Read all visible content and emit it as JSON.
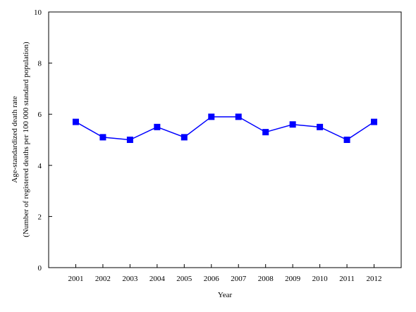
{
  "chart_data": {
    "type": "line",
    "title": "",
    "xlabel": "Year",
    "ylabel_line1": "Age-standardized death rate",
    "ylabel_line2": "(Number of registered deaths per 100 000 standard population)",
    "categories": [
      "2001",
      "2002",
      "2003",
      "2004",
      "2005",
      "2006",
      "2007",
      "2008",
      "2009",
      "2010",
      "2011",
      "2012"
    ],
    "values": [
      5.7,
      5.1,
      5.0,
      5.5,
      5.1,
      5.9,
      5.9,
      5.3,
      5.6,
      5.5,
      5.0,
      5.7
    ],
    "ylim": [
      0,
      10
    ],
    "yticks": [
      "0",
      "2",
      "4",
      "6",
      "8",
      "10"
    ],
    "grid": false,
    "marker": "square",
    "color": "#0000ff"
  }
}
